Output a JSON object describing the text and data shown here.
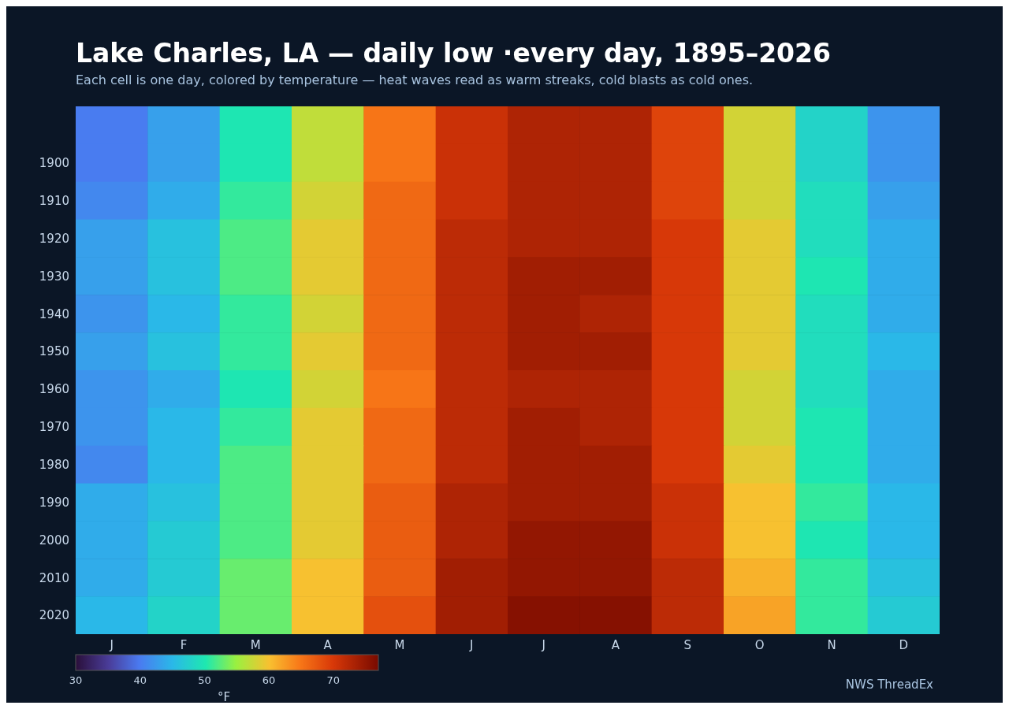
{
  "chart_data": {
    "type": "heatmap",
    "title": "Lake Charles, LA — daily low ·every day, 1895–2026",
    "subtitle": "Each cell is one day, colored by temperature — heat waves read as warm streaks, cold blasts as cold ones.",
    "categories": [
      "J",
      "F",
      "M",
      "A",
      "M",
      "J",
      "J",
      "A",
      "S",
      "O",
      "N",
      "D"
    ],
    "y_categories": [
      null,
      "1900",
      "1910",
      "1920",
      "1930",
      "1940",
      "1950",
      "1960",
      "1970",
      "1980",
      "1990",
      "2000",
      "2010",
      "2020"
    ],
    "cells": [
      [
        40,
        43,
        50,
        57,
        65,
        71,
        73,
        73,
        69,
        58,
        48,
        42
      ],
      [
        40,
        43,
        50,
        57,
        65,
        71,
        73,
        73,
        69,
        58,
        48,
        42
      ],
      [
        41,
        44,
        51,
        58,
        66,
        71,
        73,
        73,
        69,
        58,
        49,
        43
      ],
      [
        43,
        46,
        52,
        59,
        66,
        72,
        73,
        73,
        70,
        59,
        49,
        44
      ],
      [
        43,
        46,
        52,
        59,
        66,
        72,
        74,
        74,
        70,
        59,
        50,
        44
      ],
      [
        42,
        45,
        51,
        58,
        66,
        72,
        74,
        73,
        70,
        59,
        49,
        44
      ],
      [
        43,
        46,
        51,
        59,
        66,
        72,
        74,
        74,
        70,
        59,
        49,
        45
      ],
      [
        42,
        44,
        50,
        58,
        65,
        72,
        73,
        73,
        70,
        58,
        49,
        44
      ],
      [
        42,
        45,
        51,
        59,
        66,
        72,
        74,
        73,
        70,
        58,
        50,
        44
      ],
      [
        41,
        45,
        52,
        59,
        66,
        72,
        74,
        74,
        70,
        59,
        50,
        44
      ],
      [
        44,
        46,
        52,
        59,
        67,
        73,
        74,
        74,
        71,
        60,
        51,
        45
      ],
      [
        44,
        47,
        52,
        59,
        67,
        73,
        75,
        75,
        71,
        60,
        50,
        45
      ],
      [
        44,
        47,
        53,
        60,
        67,
        74,
        75,
        75,
        72,
        61,
        51,
        46
      ],
      [
        45,
        48,
        53,
        60,
        68,
        74,
        76,
        76,
        72,
        62,
        51,
        47
      ]
    ],
    "clabel": "°F",
    "clim": [
      30,
      77
    ],
    "cticks": [
      30,
      40,
      50,
      60,
      70
    ],
    "annotations": [
      "NWS ThreadEx"
    ]
  }
}
